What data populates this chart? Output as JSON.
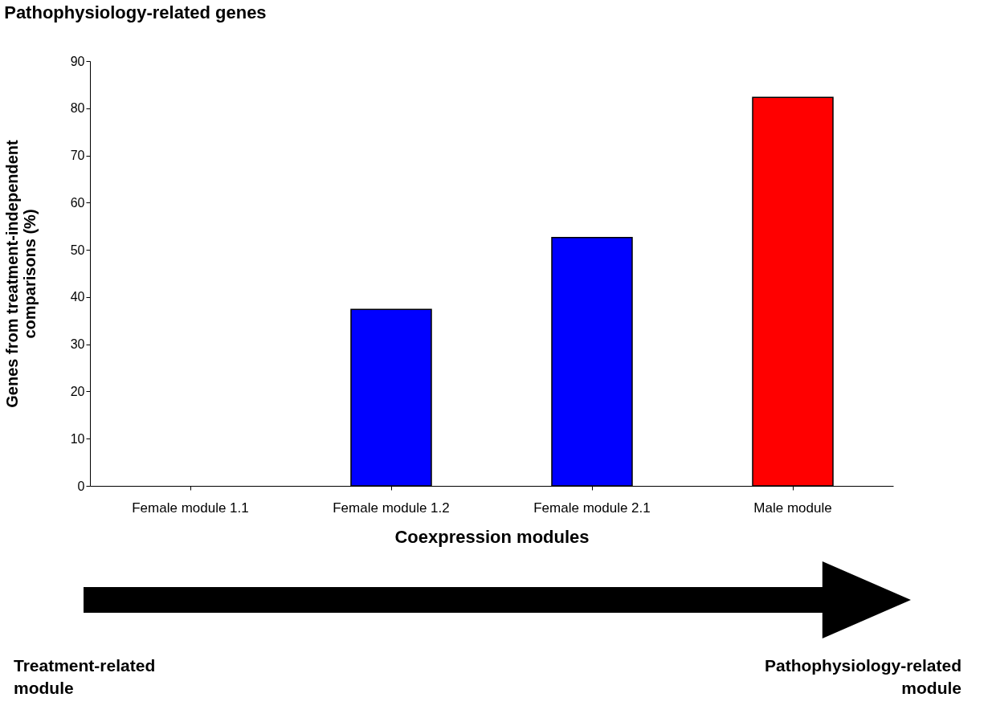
{
  "chart_data": {
    "type": "bar",
    "title": "Pathophysiology-related genes",
    "xlabel": "Coexpression modules",
    "ylabel": "Genes from treatment-independent comparisons (%)",
    "categories": [
      "Female module 1.1",
      "Female module 1.2",
      "Female module 2.1",
      "Male module"
    ],
    "values": [
      0,
      37.4,
      52.6,
      82.3
    ],
    "colors": [
      "#0000ff",
      "#0000ff",
      "#0000ff",
      "#ff0000"
    ],
    "ylim": [
      0,
      90
    ],
    "yticks": [
      0,
      10,
      20,
      30,
      40,
      50,
      60,
      70,
      80,
      90
    ],
    "grid": false,
    "annotations": [
      "Treatment-related module",
      "Pathophysiology-related module"
    ]
  }
}
